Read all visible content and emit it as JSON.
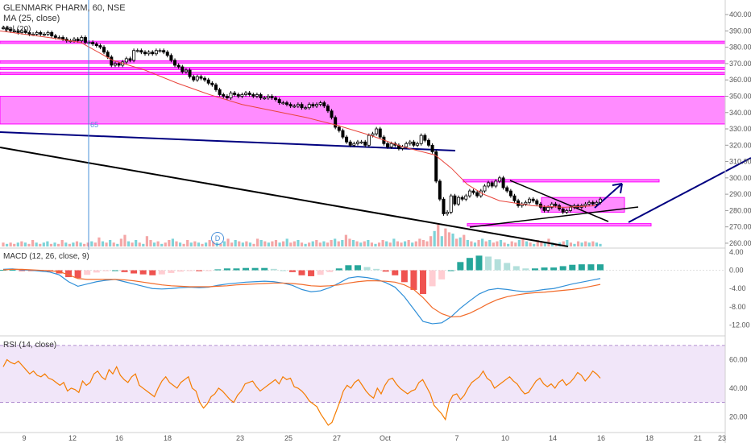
{
  "header": {
    "symbol_line": "GLENMARK PHARM, 60, NSE",
    "ma_label": "MA (25, close)",
    "vol_label": "Vol (20)"
  },
  "colors": {
    "up": "#000000",
    "down": "#000000",
    "ma": "#e8453c",
    "zone": "#ff00ff",
    "zone_fill": "#ff66ff",
    "trend": "#000080",
    "macd_line": "#2f8fd8",
    "signal_line": "#f26b2a",
    "hist_pos_strong": "#26a69a",
    "hist_pos_weak": "#b2dfdb",
    "hist_neg_strong": "#ef5350",
    "hist_neg_weak": "#ffcdd2",
    "rsi_line": "#f57c00",
    "rsi_band": "#e8d5f5",
    "vol_up": "#7dd3d8",
    "vol_down": "#f4a6a6",
    "vline": "#4a90d9"
  },
  "price_axis": {
    "ticks": [
      "400.00",
      "390.00",
      "380.00",
      "370.00",
      "360.00",
      "350.00",
      "340.00",
      "330.00",
      "320.00",
      "310.00",
      "300.00",
      "290.00",
      "280.00",
      "270.00",
      "260.00"
    ]
  },
  "macd_pane": {
    "label": "MACD (12, 26, close, 9)",
    "ticks": [
      "4.00",
      "0.00",
      "-4.00",
      "-8.00",
      "-12.00"
    ]
  },
  "rsi_pane": {
    "label": "RSI (14, close)",
    "ticks": [
      "60.00",
      "40.00",
      "20.00"
    ]
  },
  "x_axis": {
    "ticks": [
      "9",
      "12",
      "16",
      "18",
      "23",
      "25",
      "27",
      "Oct",
      "7",
      "10",
      "14",
      "16",
      "18",
      "21",
      "23"
    ]
  },
  "vline_label": "65",
  "d_marker": "D",
  "chart_data": {
    "type": "line",
    "x_ticks": [
      "9",
      "12",
      "16",
      "18",
      "23",
      "25",
      "27",
      "Oct",
      "7",
      "10",
      "14",
      "16",
      "18",
      "21",
      "23"
    ],
    "price": {
      "ylim": [
        258,
        404
      ],
      "ma25_points": [
        [
          0,
          390
        ],
        [
          60,
          386
        ],
        [
          100,
          383
        ],
        [
          140,
          372
        ],
        [
          180,
          366
        ],
        [
          220,
          358
        ],
        [
          260,
          351
        ],
        [
          300,
          345
        ],
        [
          340,
          341
        ],
        [
          380,
          337
        ],
        [
          420,
          332
        ],
        [
          460,
          326
        ],
        [
          500,
          319
        ],
        [
          540,
          314
        ],
        [
          560,
          306
        ],
        [
          580,
          296
        ],
        [
          600,
          290
        ],
        [
          620,
          286
        ],
        [
          660,
          283
        ],
        [
          700,
          282
        ],
        [
          740,
          283
        ]
      ],
      "closes": [
        392,
        391,
        390,
        390,
        389,
        390,
        389,
        388,
        388,
        389,
        388,
        388,
        389,
        387,
        386,
        386,
        385,
        384,
        384,
        385,
        384,
        386,
        383,
        383,
        382,
        381,
        380,
        377,
        374,
        369,
        370,
        369,
        371,
        373,
        372,
        378,
        378,
        377,
        376,
        377,
        376,
        378,
        378,
        377,
        375,
        372,
        369,
        368,
        365,
        366,
        362,
        360,
        362,
        361,
        360,
        358,
        357,
        354,
        351,
        350,
        349,
        352,
        351,
        350,
        351,
        352,
        351,
        350,
        351,
        349,
        349,
        350,
        349,
        348,
        346,
        346,
        345,
        344,
        344,
        345,
        343,
        343,
        345,
        344,
        345,
        346,
        344,
        341,
        337,
        331,
        329,
        325,
        322,
        320,
        321,
        322,
        322,
        320,
        326,
        327,
        330,
        325,
        321,
        319,
        321,
        320,
        318,
        319,
        321,
        322,
        320,
        321,
        326,
        323,
        320,
        316,
        298,
        287,
        278,
        279,
        289,
        284,
        288,
        287,
        289,
        292,
        291,
        289,
        292,
        295,
        297,
        295,
        298,
        300,
        294,
        292,
        289,
        286,
        283,
        284,
        285,
        287,
        286,
        284,
        282,
        280,
        282,
        284,
        283,
        281,
        279,
        280,
        282,
        283,
        282,
        283,
        284,
        285,
        284,
        285,
        287
      ],
      "zones": [
        {
          "type": "line",
          "y": 383
        },
        {
          "type": "line",
          "y": 371
        },
        {
          "type": "line",
          "y": 367
        },
        {
          "type": "line",
          "y": 364
        },
        {
          "type": "band",
          "y1": 333,
          "y2": 350
        },
        {
          "type": "band",
          "y1": 298,
          "y2": 299
        },
        {
          "type": "band",
          "y1": 279,
          "y2": 288
        },
        {
          "type": "band",
          "y1": 271,
          "y2": 272
        }
      ]
    },
    "macd": {
      "ylim": [
        -14,
        4.5
      ],
      "macd_line": [
        0.2,
        0.3,
        0.1,
        0.0,
        -0.2,
        -0.4,
        -1.0,
        -2.5,
        -3.5,
        -3.0,
        -2.5,
        -2.2,
        -2.0,
        -2.5,
        -3.0,
        -3.5,
        -4.0,
        -4.1,
        -4.0,
        -3.8,
        -3.7,
        -3.8,
        -3.7,
        -3.3,
        -3.0,
        -2.8,
        -2.6,
        -2.5,
        -2.4,
        -2.5,
        -2.8,
        -3.3,
        -4.2,
        -4.7,
        -4.5,
        -3.8,
        -2.8,
        -1.7,
        -1.4,
        -1.6,
        -2.0,
        -2.7,
        -3.7,
        -5.8,
        -8.5,
        -11.2,
        -11.7,
        -11.5,
        -10.2,
        -8.3,
        -6.7,
        -5.2,
        -4.3,
        -4.0,
        -4.2,
        -4.5,
        -4.7,
        -4.5,
        -4.2,
        -4.0,
        -3.5,
        -3.0,
        -2.6,
        -2.2,
        -1.8
      ],
      "signal_line": [
        0.1,
        0.2,
        0.2,
        0.1,
        0.0,
        -0.1,
        -0.3,
        -1.0,
        -1.8,
        -2.0,
        -2.0,
        -2.0,
        -2.0,
        -2.1,
        -2.3,
        -2.6,
        -2.9,
        -3.2,
        -3.4,
        -3.5,
        -3.6,
        -3.6,
        -3.6,
        -3.5,
        -3.4,
        -3.2,
        -3.1,
        -3.0,
        -2.9,
        -2.8,
        -2.8,
        -2.9,
        -3.1,
        -3.4,
        -3.5,
        -3.4,
        -3.2,
        -2.8,
        -2.5,
        -2.3,
        -2.3,
        -2.4,
        -2.6,
        -3.2,
        -4.2,
        -6.0,
        -8.2,
        -9.5,
        -10.2,
        -10.1,
        -9.4,
        -8.4,
        -7.3,
        -6.4,
        -5.8,
        -5.4,
        -5.1,
        -4.9,
        -4.8,
        -4.6,
        -4.4,
        -4.2,
        -3.9,
        -3.5,
        -3.1
      ],
      "histogram": [
        0.1,
        0.1,
        -0.1,
        -0.1,
        -0.2,
        -0.3,
        -0.7,
        -1.5,
        -1.7,
        -1.0,
        -0.5,
        -0.2,
        0.0,
        -0.4,
        -0.7,
        -0.9,
        -1.1,
        -0.9,
        -0.6,
        -0.3,
        -0.1,
        -0.2,
        -0.1,
        0.2,
        0.4,
        0.4,
        0.5,
        0.5,
        0.5,
        0.3,
        0.0,
        -0.4,
        -1.1,
        -1.3,
        -1.0,
        -0.4,
        0.4,
        1.1,
        1.1,
        0.7,
        0.3,
        -0.3,
        -1.1,
        -2.6,
        -4.3,
        -5.2,
        -3.5,
        -2.0,
        -0.0,
        1.8,
        2.7,
        3.2,
        3.0,
        2.4,
        1.6,
        0.9,
        0.4,
        0.4,
        0.6,
        0.6,
        0.9,
        1.2,
        1.3,
        1.3,
        1.3
      ]
    },
    "rsi": {
      "ylim": [
        10,
        75
      ],
      "bands": [
        30,
        70
      ],
      "values": [
        55,
        60,
        58,
        57,
        59,
        56,
        53,
        50,
        52,
        49,
        48,
        50,
        47,
        46,
        44,
        42,
        44,
        38,
        40,
        39,
        37,
        45,
        42,
        44,
        50,
        52,
        48,
        46,
        53,
        50,
        55,
        49,
        46,
        44,
        48,
        50,
        42,
        40,
        38,
        36,
        34,
        40,
        45,
        48,
        44,
        42,
        40,
        44,
        46,
        48,
        40,
        38,
        30,
        26,
        29,
        34,
        36,
        40,
        38,
        35,
        32,
        30,
        35,
        38,
        43,
        44,
        45,
        41,
        38,
        40,
        42,
        44,
        46,
        43,
        48,
        46,
        47,
        41,
        40,
        38,
        35,
        31,
        29,
        27,
        22,
        18,
        14,
        16,
        23,
        30,
        38,
        42,
        40,
        44,
        46,
        42,
        38,
        35,
        33,
        40,
        36,
        42,
        46,
        47,
        43,
        40,
        38,
        36,
        38,
        39,
        44,
        46,
        41,
        36,
        28,
        25,
        22,
        18,
        30,
        35,
        36,
        32,
        35,
        40,
        44,
        46,
        48,
        52,
        47,
        45,
        40,
        42,
        44,
        46,
        48,
        45,
        43,
        39,
        36,
        37,
        41,
        45,
        47,
        43,
        41,
        43,
        40,
        44,
        46,
        42,
        44,
        47,
        51,
        49,
        45,
        48,
        52,
        50,
        47
      ]
    },
    "volume": {
      "values": [
        3,
        2,
        3,
        2,
        3,
        4,
        3,
        2,
        5,
        3,
        2,
        3,
        4,
        2,
        3,
        2,
        5,
        3,
        2,
        3,
        4,
        3,
        2,
        3,
        4,
        3,
        7,
        4,
        3,
        5,
        3,
        2,
        6,
        9,
        4,
        3,
        5,
        3,
        2,
        8,
        5,
        3,
        4,
        2,
        3,
        5,
        6,
        4,
        3,
        2,
        5,
        3,
        4,
        3,
        2,
        3,
        5,
        4,
        3,
        2,
        4,
        6,
        3,
        5,
        4,
        3,
        4,
        3,
        2,
        6,
        5,
        4,
        3,
        4,
        5,
        3,
        4,
        6,
        3,
        4,
        5,
        3,
        2,
        3,
        4,
        5,
        3,
        4,
        3,
        5,
        6,
        4,
        5,
        9,
        6,
        5,
        4,
        3,
        4,
        5,
        3,
        2,
        3,
        5,
        4,
        3,
        6,
        4,
        3,
        4,
        5,
        3,
        4,
        6,
        5,
        4,
        8,
        12,
        17,
        8,
        14,
        11,
        10,
        6,
        7,
        9,
        5,
        4,
        3,
        5,
        6,
        4,
        5,
        3,
        4,
        5,
        3,
        2,
        4,
        3,
        5,
        6,
        4,
        3,
        2,
        5,
        4,
        3,
        6,
        3,
        2,
        3,
        4,
        5,
        3,
        2,
        4,
        3,
        4,
        3,
        4,
        3,
        2
      ],
      "up_flags": [
        0,
        1,
        0,
        0,
        1,
        0,
        1,
        0,
        0,
        1,
        0,
        1,
        1,
        0,
        1,
        0,
        0,
        1,
        0,
        1,
        0,
        1,
        0,
        0,
        1,
        0,
        0,
        1,
        0,
        1,
        0,
        1,
        0,
        0,
        1,
        0,
        1,
        0,
        1,
        0,
        0,
        1,
        0,
        1,
        0,
        0,
        1,
        0,
        1,
        0,
        0,
        1,
        0,
        1,
        0,
        1,
        0,
        0,
        1,
        0,
        1,
        0,
        0,
        1,
        0,
        1,
        0,
        1,
        0,
        0,
        1,
        0,
        1,
        0,
        0,
        1,
        0,
        1,
        0,
        0,
        1,
        0,
        1,
        0,
        1,
        0,
        0,
        1,
        0,
        0,
        1,
        0,
        1,
        0,
        0,
        1,
        0,
        1,
        0,
        1,
        0,
        1,
        0,
        0,
        1,
        0,
        1,
        0,
        0,
        1,
        0,
        1,
        0,
        0,
        0,
        0,
        0,
        1,
        0,
        1,
        0,
        0,
        1,
        0,
        1,
        0,
        1,
        0,
        1,
        0,
        1,
        0,
        1,
        0,
        0,
        1,
        0,
        1,
        0,
        0,
        1,
        0,
        1,
        0,
        1,
        0,
        0,
        1,
        0,
        1,
        0,
        1,
        0,
        1,
        0,
        1,
        0,
        1,
        0,
        1,
        0,
        1,
        1
      ]
    }
  }
}
